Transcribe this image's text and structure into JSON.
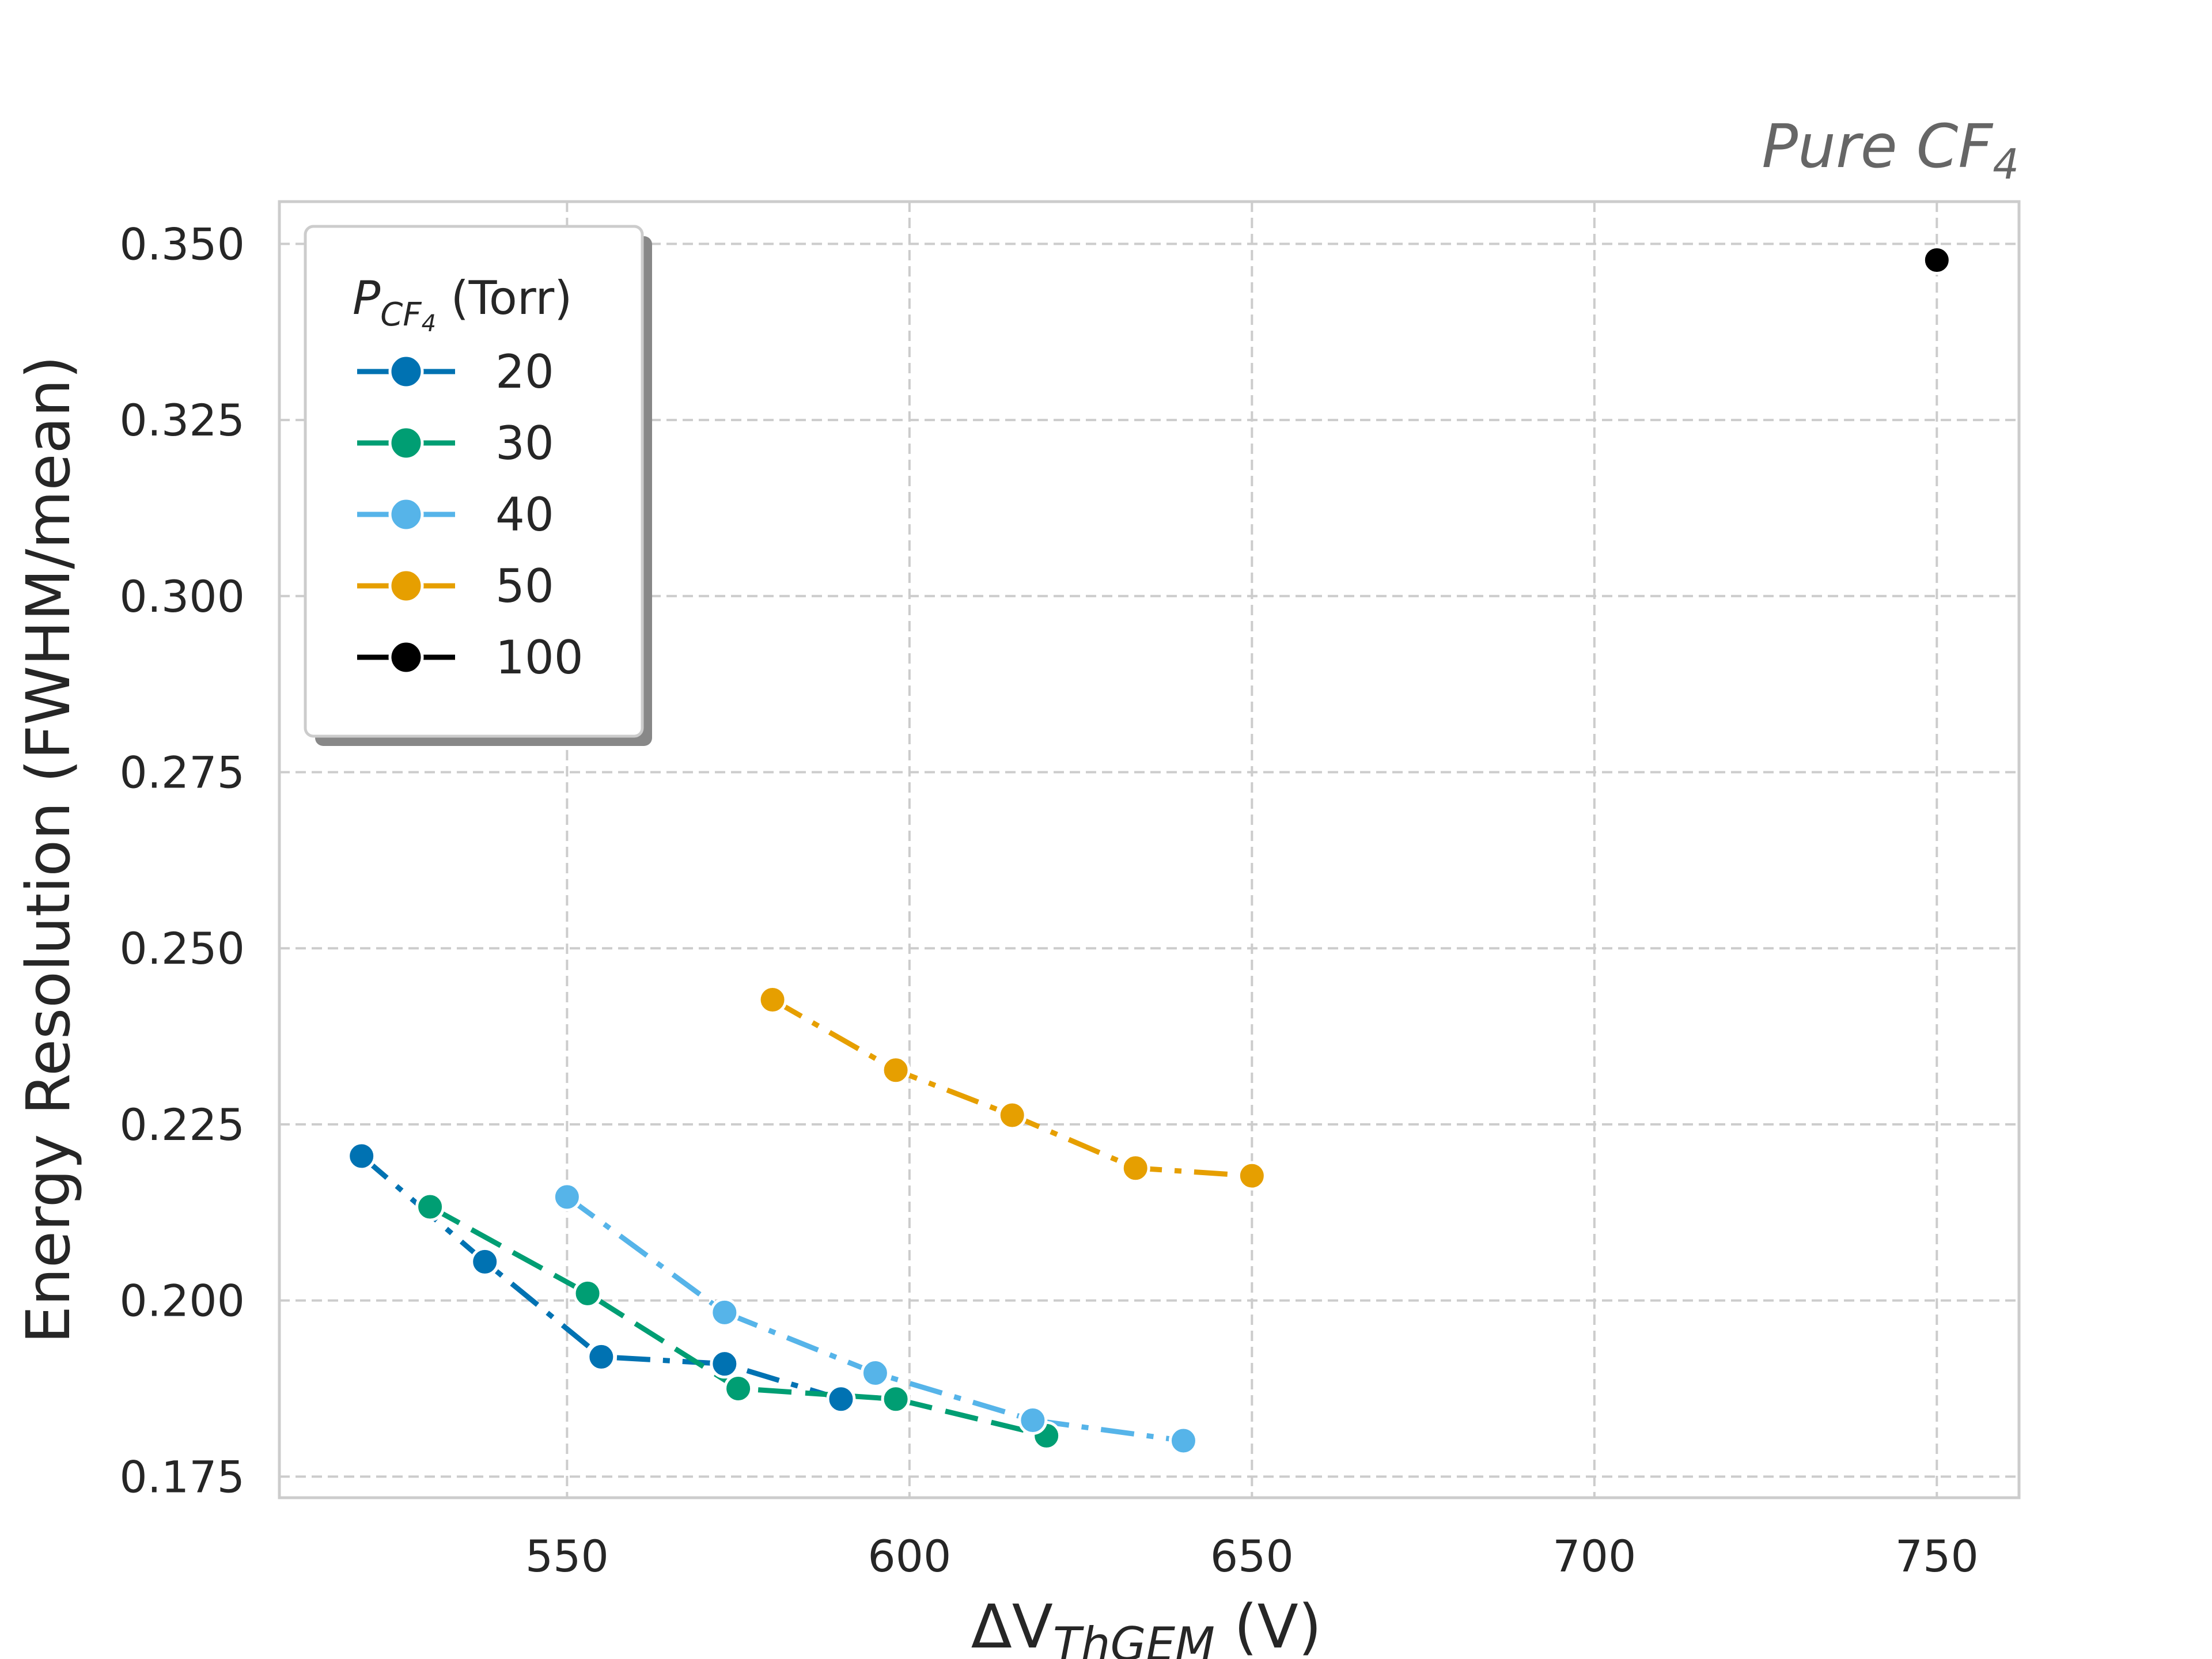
{
  "chart_data": {
    "type": "line",
    "title_prefix": "Pure CF",
    "title_sub": "4",
    "xlabel_main": "ΔV",
    "xlabel_sub": "ThGEM",
    "xlabel_unit": " (V)",
    "ylabel": "Energy Resolution (FWHM/mean)",
    "xlim": [
      508,
      762
    ],
    "ylim": [
      0.172,
      0.356
    ],
    "xticks": [
      550,
      600,
      650,
      700,
      750
    ],
    "yticks": [
      0.175,
      0.2,
      0.225,
      0.25,
      0.275,
      0.3,
      0.325,
      0.35
    ],
    "ytick_labels": [
      "0.175",
      "0.200",
      "0.225",
      "0.250",
      "0.275",
      "0.300",
      "0.325",
      "0.350"
    ],
    "grid": true,
    "legend": {
      "position": "top-left",
      "title_symbol": "P",
      "title_sub_main": "CF",
      "title_sub_sub": "4",
      "title_unit": " (Torr)"
    },
    "series": [
      {
        "name": "20",
        "color": "#0072b2",
        "dash": "dashdot",
        "x": [
          520,
          538,
          555,
          573,
          590
        ],
        "y": [
          0.2205,
          0.2055,
          0.192,
          0.191,
          0.186
        ]
      },
      {
        "name": "30",
        "color": "#009e73",
        "dash": "dashed",
        "x": [
          530,
          553,
          575,
          598,
          620
        ],
        "y": [
          0.2133,
          0.201,
          0.1875,
          0.186,
          0.1808
        ]
      },
      {
        "name": "40",
        "color": "#56b4e9",
        "dash": "dashdot",
        "x": [
          550,
          573,
          595,
          618,
          640
        ],
        "y": [
          0.2147,
          0.1983,
          0.1897,
          0.183,
          0.1801
        ]
      },
      {
        "name": "50",
        "color": "#e69f00",
        "dash": "dashdot",
        "x": [
          580,
          598,
          615,
          633,
          650
        ],
        "y": [
          0.2427,
          0.2327,
          0.2263,
          0.2188,
          0.2177
        ]
      },
      {
        "name": "100",
        "color": "#000000",
        "dash": "solid",
        "x": [
          750
        ],
        "y": [
          0.3477
        ]
      }
    ]
  }
}
